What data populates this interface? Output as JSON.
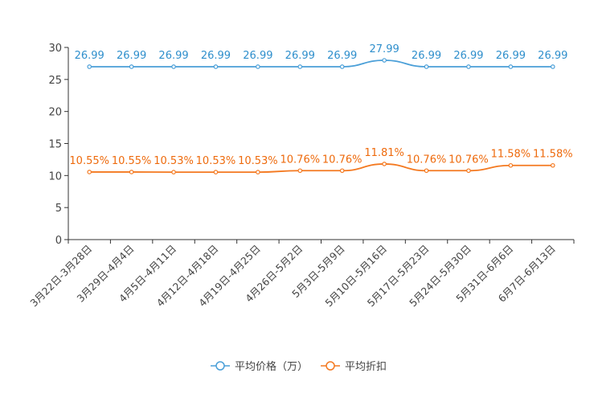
{
  "chart_data": {
    "type": "line",
    "title": "",
    "xlabel": "",
    "ylabel": "",
    "ylim": [
      0,
      30
    ],
    "yticks": [
      0,
      5,
      10,
      15,
      20,
      25,
      30
    ],
    "grid": false,
    "legend_position": "bottom",
    "categories": [
      "3月22日-3月28日",
      "3月29日-4月4日",
      "4月5日-4月11日",
      "4月12日-4月18日",
      "4月19日-4月25日",
      "4月26日-5月2日",
      "5月3日-5月9日",
      "5月10日-5月16日",
      "5月17日-5月23日",
      "5月24日-5月30日",
      "5月31日-6月6日",
      "6月7日-6月13日"
    ],
    "series": [
      {
        "name": "平均价格（万）",
        "color": "#4a9fd8",
        "label_color": "#2f8fcc",
        "values": [
          26.99,
          26.99,
          26.99,
          26.99,
          26.99,
          26.99,
          26.99,
          27.99,
          26.99,
          26.99,
          26.99,
          26.99
        ],
        "labels": [
          "26.99",
          "26.99",
          "26.99",
          "26.99",
          "26.99",
          "26.99",
          "26.99",
          "27.99",
          "26.99",
          "26.99",
          "26.99",
          "26.99"
        ]
      },
      {
        "name": "平均折扣",
        "color": "#f47920",
        "label_color": "#ee6a0c",
        "values": [
          10.55,
          10.55,
          10.53,
          10.53,
          10.53,
          10.76,
          10.76,
          11.81,
          10.76,
          10.76,
          11.58,
          11.58
        ],
        "labels": [
          "10.55%",
          "10.55%",
          "10.53%",
          "10.53%",
          "10.53%",
          "10.76%",
          "10.76%",
          "11.81%",
          "10.76%",
          "10.76%",
          "11.58%",
          "11.58%"
        ]
      }
    ]
  }
}
